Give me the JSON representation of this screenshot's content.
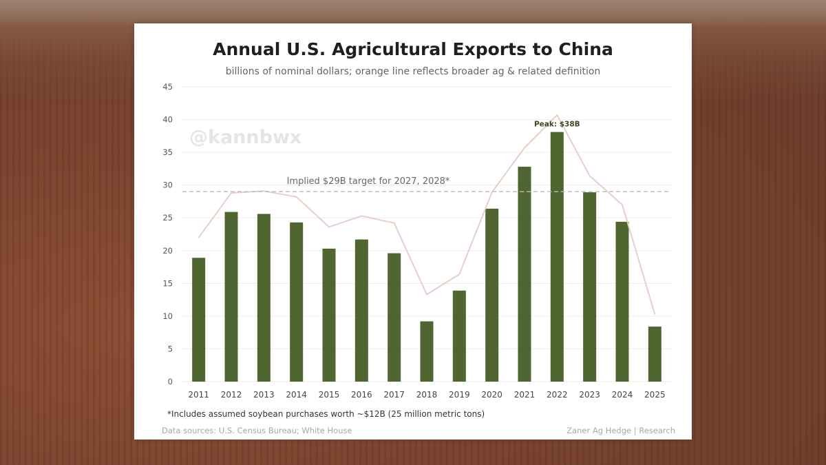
{
  "chart_data": {
    "type": "bar",
    "title": "Annual U.S. Agricultural Exports to China",
    "subtitle": "billions of nominal dollars; orange line reflects broader ag & related definition",
    "categories": [
      "2011",
      "2012",
      "2013",
      "2014",
      "2015",
      "2016",
      "2017",
      "2018",
      "2019",
      "2020",
      "2021",
      "2022",
      "2023",
      "2024",
      "2025"
    ],
    "series": [
      {
        "type": "bar",
        "values": [
          18.9,
          25.9,
          25.6,
          24.3,
          20.3,
          21.7,
          19.6,
          9.2,
          13.9,
          26.4,
          32.8,
          38.1,
          28.9,
          24.4,
          8.4
        ]
      },
      {
        "type": "line",
        "values": [
          22.0,
          28.8,
          29.1,
          28.2,
          23.6,
          25.3,
          24.2,
          13.3,
          16.4,
          28.9,
          35.7,
          40.7,
          31.4,
          27.0,
          10.3
        ]
      }
    ],
    "ylim": [
      0,
      45
    ],
    "yticks": [
      0,
      5,
      10,
      15,
      20,
      25,
      30,
      35,
      40,
      45
    ],
    "target_line": {
      "value": 29,
      "label": "Implied $29B target for 2027, 2028*"
    },
    "peak_annotation": {
      "category": "2022",
      "label": "Peak: $38B"
    },
    "colors": {
      "bars": "#4f6630",
      "line": "#e8cfc6",
      "target": "#bbbbbb",
      "grid": "#ececec"
    },
    "grid": true,
    "footnote": "*Includes assumed soybean purchases worth ~$12B (25 million metric tons)",
    "source": "Data sources: U.S. Census Bureau; White House",
    "credit": "Zaner Ag Hedge | Research"
  },
  "watermark": "@kannbwx"
}
